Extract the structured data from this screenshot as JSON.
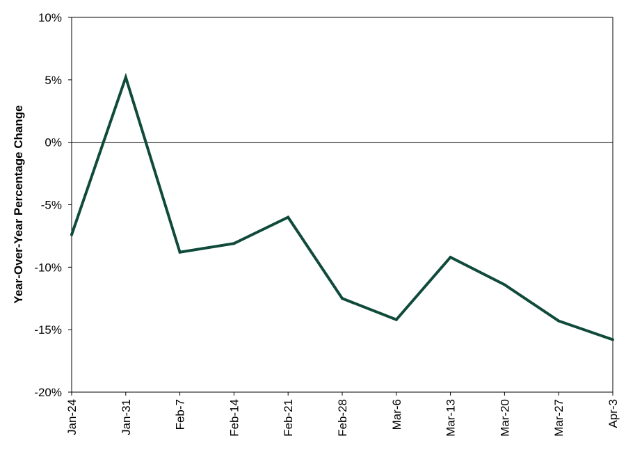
{
  "chart_data": {
    "type": "line",
    "title": "",
    "xlabel": "",
    "ylabel": "Year-Over-Year Percentage Change",
    "categories": [
      "Jan-24",
      "Jan-31",
      "Feb-7",
      "Feb-14",
      "Feb-21",
      "Feb-28",
      "Mar-6",
      "Mar-13",
      "Mar-20",
      "Mar-27",
      "Apr-3"
    ],
    "series": [
      {
        "values": [
          -7.4,
          5.2,
          -8.8,
          -8.1,
          -6.0,
          -12.5,
          -14.2,
          -9.2,
          -11.4,
          -14.3,
          -15.8
        ],
        "color": "#0f4a3a"
      }
    ],
    "ylim": [
      -20,
      10
    ],
    "yticks": [
      10,
      5,
      0,
      -5,
      -10,
      -15,
      -20
    ],
    "ytick_labels": [
      "10%",
      "5%",
      "0%",
      "-5%",
      "-10%",
      "-15%",
      "-20%"
    ],
    "zero_line": true,
    "grid": false,
    "legend": "none"
  }
}
